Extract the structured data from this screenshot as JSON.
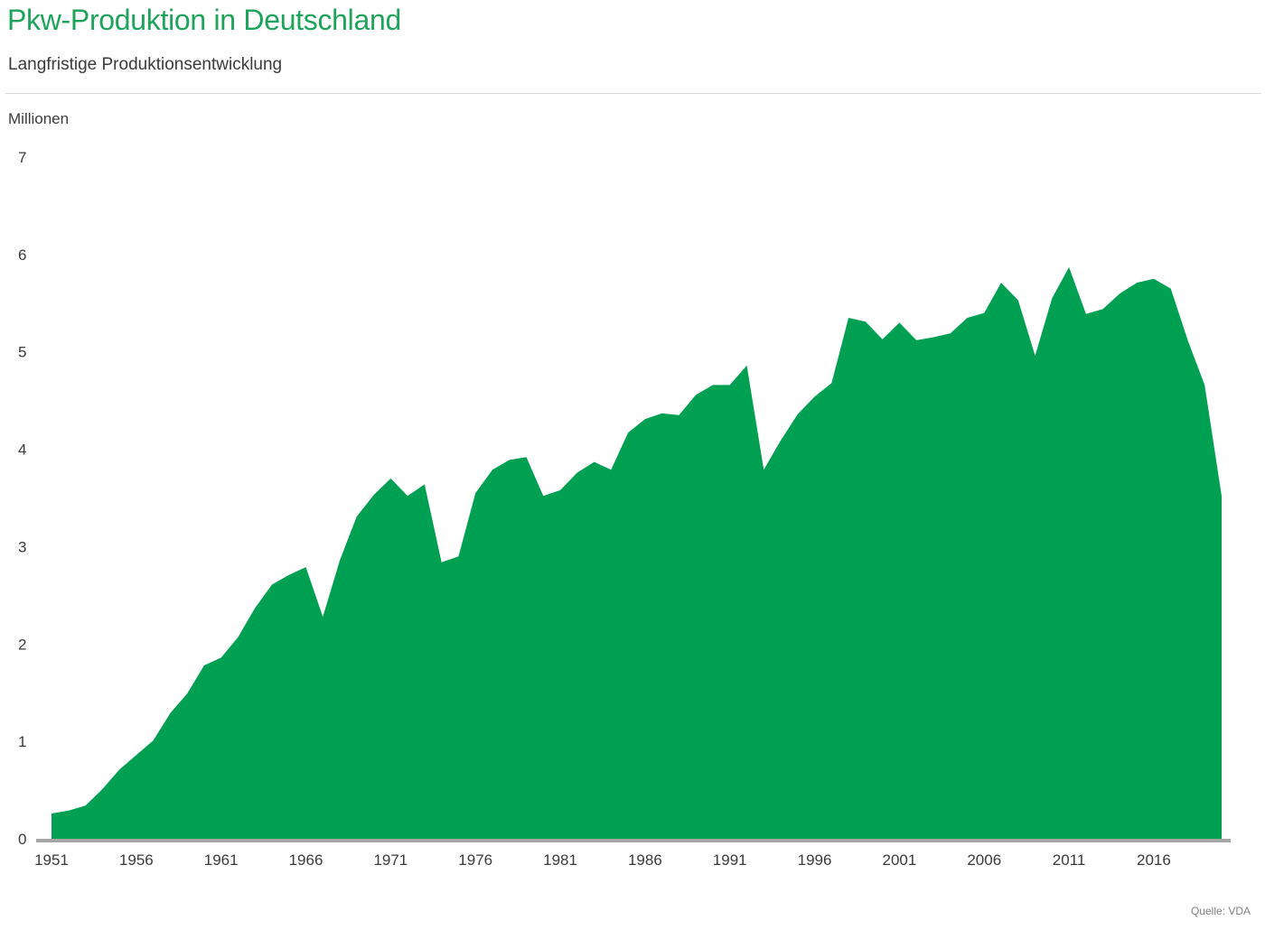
{
  "header": {
    "title": "Pkw-Produktion in Deutschland",
    "subtitle": "Langfristige Produktionsentwicklung"
  },
  "footer": {
    "source": "Quelle: VDA"
  },
  "colors": {
    "accent": "#00a052",
    "title": "#1ea35a",
    "axis": "#a6a6a6"
  },
  "chart_data": {
    "type": "area",
    "title": "Pkw-Produktion in Deutschland",
    "subtitle": "Langfristige Produktionsentwicklung",
    "ylabel": "Millionen",
    "xlabel": "",
    "ylim": [
      0,
      7
    ],
    "yticks": [
      0,
      1,
      2,
      3,
      4,
      5,
      6,
      7
    ],
    "xticks": [
      1951,
      1956,
      1961,
      1966,
      1971,
      1976,
      1981,
      1986,
      1991,
      1996,
      2001,
      2006,
      2011,
      2016
    ],
    "grid": false,
    "legend": "none",
    "x": [
      1951,
      1952,
      1953,
      1954,
      1955,
      1956,
      1957,
      1958,
      1959,
      1960,
      1961,
      1962,
      1963,
      1964,
      1965,
      1966,
      1967,
      1968,
      1969,
      1970,
      1971,
      1972,
      1973,
      1974,
      1975,
      1976,
      1977,
      1978,
      1979,
      1980,
      1981,
      1982,
      1983,
      1984,
      1985,
      1986,
      1987,
      1988,
      1989,
      1990,
      1991,
      1992,
      1993,
      1994,
      1995,
      1996,
      1997,
      1998,
      1999,
      2000,
      2001,
      2002,
      2003,
      2004,
      2005,
      2006,
      2007,
      2008,
      2009,
      2010,
      2011,
      2012,
      2013,
      2014,
      2015,
      2016,
      2017,
      2018,
      2019,
      2020
    ],
    "series": [
      {
        "name": "",
        "values": [
          0.26,
          0.29,
          0.34,
          0.51,
          0.71,
          0.86,
          1.01,
          1.29,
          1.49,
          1.78,
          1.86,
          2.07,
          2.37,
          2.61,
          2.71,
          2.79,
          2.28,
          2.86,
          3.31,
          3.53,
          3.7,
          3.52,
          3.64,
          2.84,
          2.9,
          3.55,
          3.79,
          3.89,
          3.92,
          3.52,
          3.58,
          3.76,
          3.87,
          3.79,
          4.17,
          4.31,
          4.37,
          4.35,
          4.56,
          4.66,
          4.66,
          4.86,
          3.79,
          4.09,
          4.36,
          4.54,
          4.68,
          5.35,
          5.31,
          5.13,
          5.3,
          5.12,
          5.15,
          5.19,
          5.35,
          5.4,
          5.71,
          5.53,
          4.96,
          5.55,
          5.87,
          5.39,
          5.44,
          5.6,
          5.71,
          5.75,
          5.65,
          5.12,
          4.66,
          3.52
        ]
      }
    ]
  }
}
